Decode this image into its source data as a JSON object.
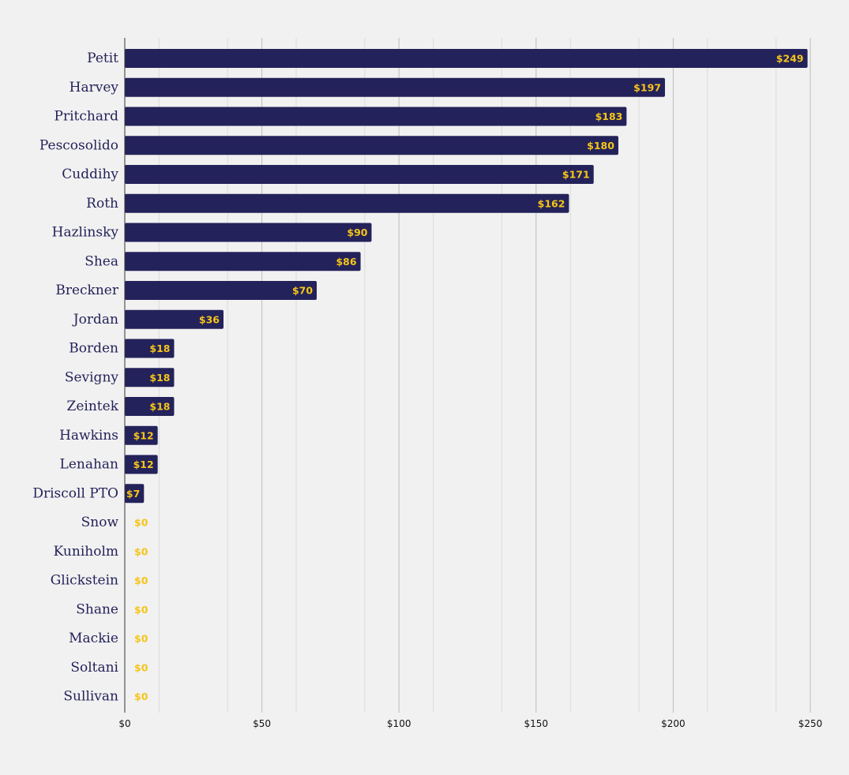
{
  "chart_data": {
    "type": "bar",
    "orientation": "horizontal",
    "title": "",
    "xlabel": "",
    "ylabel": "",
    "xlim": [
      0,
      250
    ],
    "x_ticks": [
      0,
      50,
      100,
      150,
      200,
      250
    ],
    "x_tick_labels": [
      "$0",
      "$50",
      "$100",
      "$150",
      "$200",
      "$250"
    ],
    "grid": "vertical",
    "categories": [
      "Petit",
      "Harvey",
      "Pritchard",
      "Pescosolido",
      "Cuddihy",
      "Roth",
      "Hazlinsky",
      "Shea",
      "Breckner",
      "Jordan",
      "Borden",
      "Sevigny",
      "Zeintek",
      "Hawkins",
      "Lenahan",
      "Driscoll PTO",
      "Snow",
      "Kuniholm",
      "Glickstein",
      "Shane",
      "Mackie",
      "Soltani",
      "Sullivan"
    ],
    "values": [
      249,
      197,
      183,
      180,
      171,
      162,
      90,
      86,
      70,
      36,
      18,
      18,
      18,
      12,
      12,
      7,
      0,
      0,
      0,
      0,
      0,
      0,
      0
    ],
    "value_labels": [
      "$249",
      "$197",
      "$183",
      "$180",
      "$171",
      "$162",
      "$90",
      "$86",
      "$70",
      "$36",
      "$18",
      "$18",
      "$18",
      "$12",
      "$12",
      "$7",
      "$0",
      "$0",
      "$0",
      "$0",
      "$0",
      "$0",
      "$0"
    ],
    "colors": {
      "bar": "#24225a",
      "value_label": "#f5c518",
      "category_label": "#24225a",
      "background": "#f1f1f1",
      "grid_major": "#bdbdbd",
      "grid_minor": "#dcdcdc",
      "axis": "#333333"
    }
  }
}
